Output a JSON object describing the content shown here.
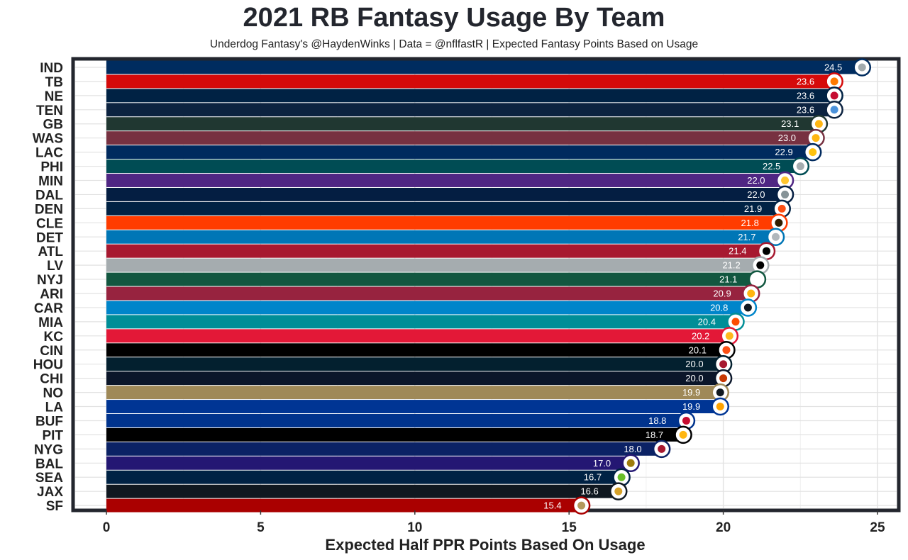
{
  "chart_data": {
    "type": "bar",
    "orientation": "horizontal",
    "title": "2021 RB Fantasy Usage By Team",
    "subtitle": "Underdog Fantasy's @HaydenWinks | Data = @nflfastR | Expected Fantasy Points Based on Usage",
    "xlabel": "Expected Half PPR Points Based On Usage",
    "ylabel": "",
    "xlim": [
      0,
      25
    ],
    "xticks": [
      0,
      5,
      10,
      15,
      20,
      25
    ],
    "grid": true,
    "legend": "none",
    "categories": [
      "IND",
      "TB",
      "NE",
      "TEN",
      "GB",
      "WAS",
      "LAC",
      "PHI",
      "MIN",
      "DAL",
      "DEN",
      "CLE",
      "DET",
      "ATL",
      "LV",
      "NYJ",
      "ARI",
      "CAR",
      "MIA",
      "KC",
      "CIN",
      "HOU",
      "CHI",
      "NO",
      "LA",
      "BUF",
      "PIT",
      "NYG",
      "BAL",
      "SEA",
      "JAX",
      "SF"
    ],
    "values": [
      24.5,
      23.6,
      23.6,
      23.6,
      23.1,
      23.0,
      22.9,
      22.5,
      22.0,
      22.0,
      21.9,
      21.8,
      21.7,
      21.4,
      21.2,
      21.1,
      20.9,
      20.8,
      20.4,
      20.2,
      20.1,
      20.0,
      20.0,
      19.9,
      19.9,
      18.8,
      18.7,
      18.0,
      17.0,
      16.7,
      16.6,
      15.4
    ],
    "value_labels": [
      "24.5",
      "23.6",
      "23.6",
      "23.6",
      "23.1",
      "23.0",
      "22.9",
      "22.5",
      "22.0",
      "22.0",
      "21.9",
      "21.8",
      "21.7",
      "21.4",
      "21.2",
      "21.1",
      "20.9",
      "20.8",
      "20.4",
      "20.2",
      "20.1",
      "20.0",
      "20.0",
      "19.9",
      "19.9",
      "18.8",
      "18.7",
      "18.0",
      "17.0",
      "16.7",
      "16.6",
      "15.4"
    ],
    "colors": [
      "#002C5F",
      "#D50A0A",
      "#002244",
      "#0C2340",
      "#203731",
      "#773141",
      "#002A5E",
      "#004C54",
      "#4F2683",
      "#041E42",
      "#002244",
      "#FF3C00",
      "#0076B6",
      "#A71930",
      "#A5ACAF",
      "#125740",
      "#97233F",
      "#0085CA",
      "#008E97",
      "#E31837",
      "#000000",
      "#03202F",
      "#0B162A",
      "#9F8958",
      "#003594",
      "#00338D",
      "#000000",
      "#0B2265",
      "#241773",
      "#002244",
      "#101820",
      "#AA0000"
    ],
    "logo_icons": [
      "colts-logo",
      "buccaneers-logo",
      "patriots-logo",
      "titans-logo",
      "packers-logo",
      "commanders-logo",
      "chargers-logo",
      "eagles-logo",
      "vikings-logo",
      "cowboys-logo",
      "broncos-logo",
      "browns-logo",
      "lions-logo",
      "falcons-logo",
      "raiders-logo",
      "jets-logo",
      "cardinals-logo",
      "panthers-logo",
      "dolphins-logo",
      "chiefs-logo",
      "bengals-logo",
      "texans-logo",
      "bears-logo",
      "saints-logo",
      "rams-logo",
      "bills-logo",
      "steelers-logo",
      "giants-logo",
      "ravens-logo",
      "seahawks-logo",
      "jaguars-logo",
      "49ers-logo"
    ],
    "logo_accents": [
      "#A2AAAD",
      "#FF7900",
      "#C60C30",
      "#4B92DB",
      "#FFB612",
      "#FFB612",
      "#FFC20E",
      "#A5ACAF",
      "#FFC62F",
      "#869397",
      "#FB4F14",
      "#311D00",
      "#B0B7BC",
      "#000000",
      "#000000",
      "#FFFFFF",
      "#FFB612",
      "#101820",
      "#FC4C02",
      "#FFB81C",
      "#FB4F14",
      "#A71930",
      "#C83803",
      "#101820",
      "#FFA300",
      "#C60C30",
      "#FFB612",
      "#A71930",
      "#9E7C0C",
      "#69BE28",
      "#D7A22A",
      "#B3995D"
    ]
  }
}
